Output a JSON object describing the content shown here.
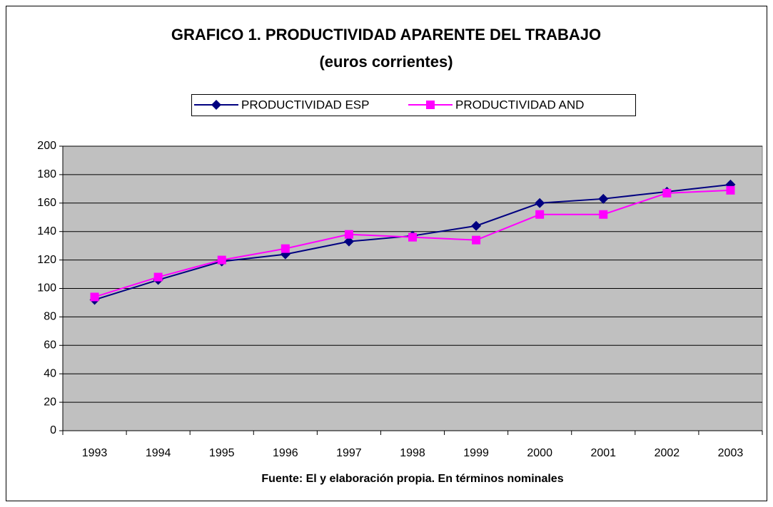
{
  "chart_data": {
    "type": "line",
    "title": "GRAFICO 1. PRODUCTIVIDAD APARENTE DEL TRABAJO",
    "subtitle": "(euros corrientes)",
    "footnote": "Fuente: El y elaboración propia. En términos nominales",
    "categories": [
      "1993",
      "1994",
      "1995",
      "1996",
      "1997",
      "1998",
      "1999",
      "2000",
      "2001",
      "2002",
      "2003"
    ],
    "series": [
      {
        "name": "PRODUCTIVIDAD ESP",
        "color": "#000080",
        "marker": "diamond",
        "values": [
          92,
          106,
          119,
          124,
          133,
          137,
          144,
          160,
          163,
          168,
          173
        ]
      },
      {
        "name": "PRODUCTIVIDAD AND",
        "color": "#ff00ff",
        "marker": "square",
        "values": [
          94,
          108,
          120,
          128,
          138,
          136,
          134,
          152,
          152,
          167,
          169
        ]
      }
    ],
    "ylim": [
      0,
      200
    ],
    "yticks": [
      0,
      20,
      40,
      60,
      80,
      100,
      120,
      140,
      160,
      180,
      200
    ],
    "grid": true,
    "legend": "top"
  }
}
